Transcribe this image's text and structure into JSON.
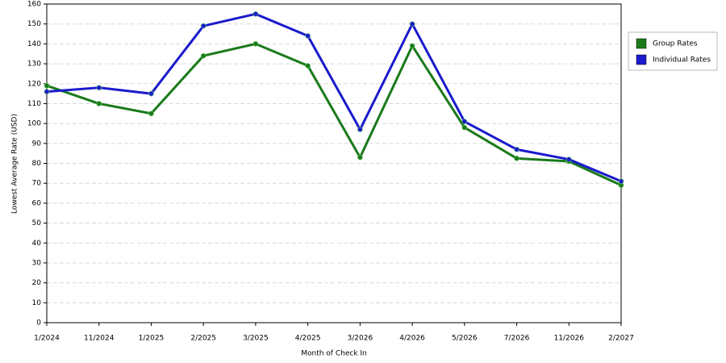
{
  "chart_data": {
    "type": "line",
    "categories": [
      "1/2024",
      "11/2024",
      "1/2025",
      "2/2025",
      "3/2025",
      "4/2025",
      "3/2026",
      "4/2026",
      "5/2026",
      "7/2026",
      "11/2026",
      "2/2027"
    ],
    "series": [
      {
        "name": "Group Rates",
        "color": "#1a7a1a",
        "values": [
          119,
          110,
          105,
          134,
          140,
          129,
          83,
          139,
          98,
          82.5,
          81,
          69
        ]
      },
      {
        "name": "Individual Rates",
        "color": "#1a1acc",
        "values": [
          116,
          118,
          115,
          149,
          155,
          144,
          97,
          150,
          101,
          87,
          82,
          71
        ]
      }
    ],
    "xlabel": "Month of Check In",
    "ylabel": "Lowest Average Rate (USD)",
    "ylim": [
      0,
      160
    ],
    "yticks": [
      0,
      10,
      20,
      30,
      40,
      50,
      60,
      70,
      80,
      90,
      100,
      110,
      120,
      130,
      140,
      150,
      160
    ],
    "grid": true,
    "legend": "right"
  }
}
